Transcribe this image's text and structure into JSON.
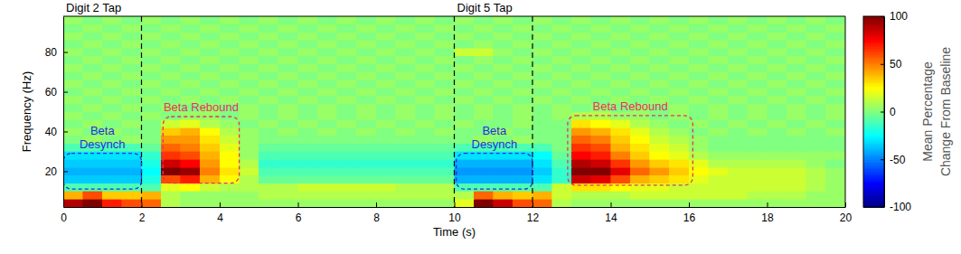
{
  "chart_data": {
    "type": "heatmap",
    "xlabel": "Time (s)",
    "ylabel": "Frequency (Hz)",
    "xlim": [
      0,
      20
    ],
    "ylim": [
      2,
      98
    ],
    "xticks": [
      0,
      2,
      4,
      6,
      8,
      10,
      12,
      14,
      16,
      18,
      20
    ],
    "yticks": [
      20,
      40,
      60,
      80
    ],
    "x": [
      0.25,
      0.75,
      1.25,
      1.75,
      2.25,
      2.75,
      3.25,
      3.75,
      4.25,
      4.75,
      5.25,
      5.75,
      6.25,
      6.75,
      7.25,
      7.75,
      8.25,
      8.75,
      9.25,
      9.75,
      10.25,
      10.75,
      11.25,
      11.75,
      12.25,
      12.75,
      13.25,
      13.75,
      14.25,
      14.75,
      15.25,
      15.75,
      16.25,
      16.75,
      17.25,
      17.75,
      18.25,
      18.75,
      19.25,
      19.75
    ],
    "y": [
      4,
      8,
      12,
      16,
      20,
      24,
      28,
      32,
      36,
      40,
      44,
      48,
      52,
      56,
      60,
      64,
      68,
      72,
      76,
      80,
      84,
      88,
      92,
      96
    ],
    "cells": [
      [
        90,
        100,
        70,
        60,
        55,
        10,
        5,
        5,
        5,
        5,
        5,
        5,
        5,
        5,
        5,
        5,
        5,
        5,
        5,
        5,
        20,
        100,
        85,
        60,
        55,
        10,
        5,
        5,
        5,
        5,
        5,
        5,
        5,
        5,
        5,
        5,
        5,
        5,
        5,
        5
      ],
      [
        40,
        60,
        35,
        35,
        40,
        10,
        5,
        5,
        5,
        5,
        10,
        10,
        10,
        10,
        10,
        10,
        10,
        10,
        10,
        10,
        10,
        55,
        40,
        35,
        40,
        15,
        10,
        10,
        10,
        15,
        15,
        15,
        15,
        15,
        15,
        10,
        10,
        10,
        5,
        5
      ],
      [
        -10,
        -10,
        -10,
        -10,
        -10,
        20,
        25,
        15,
        10,
        10,
        10,
        10,
        15,
        15,
        15,
        15,
        15,
        10,
        10,
        10,
        -10,
        -10,
        -10,
        -10,
        -10,
        15,
        30,
        30,
        25,
        20,
        20,
        15,
        15,
        15,
        15,
        15,
        15,
        15,
        10,
        5
      ],
      [
        -35,
        -35,
        -35,
        -35,
        -20,
        60,
        70,
        40,
        25,
        10,
        -5,
        -5,
        -5,
        -5,
        -5,
        -5,
        -5,
        -5,
        -5,
        -5,
        -40,
        -40,
        -40,
        -40,
        -30,
        -15,
        85,
        80,
        60,
        40,
        35,
        30,
        20,
        15,
        15,
        15,
        15,
        15,
        10,
        5
      ],
      [
        -40,
        -40,
        -40,
        -40,
        -25,
        100,
        95,
        50,
        30,
        15,
        -10,
        -10,
        -10,
        -10,
        -10,
        -10,
        -10,
        -10,
        -10,
        -10,
        -45,
        -45,
        -45,
        -45,
        -35,
        -15,
        100,
        100,
        80,
        55,
        45,
        35,
        25,
        20,
        15,
        15,
        15,
        15,
        10,
        5
      ],
      [
        -35,
        -35,
        -35,
        -35,
        -20,
        85,
        75,
        45,
        25,
        10,
        -15,
        -15,
        -15,
        -15,
        -15,
        -15,
        -15,
        -15,
        -15,
        -15,
        -40,
        -40,
        -40,
        -40,
        -30,
        -10,
        90,
        85,
        65,
        45,
        35,
        30,
        20,
        10,
        10,
        10,
        10,
        10,
        5,
        0
      ],
      [
        -30,
        -30,
        -30,
        -30,
        -15,
        65,
        60,
        40,
        25,
        5,
        -10,
        -10,
        -10,
        -10,
        -10,
        -10,
        -10,
        -10,
        -10,
        -10,
        -30,
        -30,
        -30,
        -30,
        -25,
        -5,
        75,
        70,
        50,
        35,
        25,
        20,
        10,
        5,
        5,
        5,
        5,
        5,
        5,
        5
      ],
      [
        -10,
        -10,
        -10,
        -10,
        -5,
        55,
        50,
        35,
        20,
        5,
        -5,
        -5,
        -5,
        -5,
        -5,
        -5,
        -5,
        -5,
        -5,
        -5,
        -10,
        -10,
        -10,
        -10,
        -10,
        0,
        65,
        60,
        40,
        30,
        20,
        15,
        5,
        0,
        0,
        0,
        0,
        0,
        0,
        0
      ],
      [
        0,
        5,
        0,
        5,
        0,
        45,
        45,
        30,
        15,
        5,
        0,
        0,
        0,
        0,
        0,
        0,
        0,
        0,
        0,
        0,
        0,
        5,
        0,
        5,
        0,
        0,
        55,
        50,
        35,
        25,
        15,
        10,
        5,
        0,
        0,
        0,
        0,
        0,
        0,
        0
      ],
      [
        5,
        0,
        5,
        0,
        0,
        35,
        40,
        25,
        10,
        5,
        0,
        5,
        0,
        5,
        0,
        5,
        0,
        5,
        0,
        5,
        0,
        0,
        5,
        0,
        0,
        0,
        45,
        40,
        30,
        20,
        10,
        5,
        0,
        5,
        0,
        5,
        0,
        5,
        0,
        5
      ],
      [
        0,
        5,
        0,
        5,
        0,
        15,
        20,
        10,
        5,
        0,
        5,
        0,
        5,
        0,
        5,
        0,
        5,
        0,
        5,
        0,
        5,
        0,
        0,
        5,
        0,
        0,
        30,
        25,
        20,
        10,
        5,
        0,
        5,
        0,
        5,
        0,
        5,
        0,
        5,
        0
      ],
      [
        5,
        0,
        5,
        0,
        5,
        0,
        5,
        5,
        0,
        5,
        0,
        5,
        0,
        5,
        0,
        5,
        0,
        5,
        0,
        5,
        0,
        5,
        0,
        5,
        0,
        5,
        10,
        10,
        5,
        5,
        0,
        5,
        0,
        5,
        0,
        5,
        0,
        5,
        0,
        5
      ],
      [
        0,
        5,
        0,
        5,
        0,
        5,
        0,
        5,
        0,
        5,
        0,
        5,
        0,
        5,
        0,
        5,
        0,
        5,
        0,
        5,
        0,
        5,
        0,
        5,
        0,
        5,
        0,
        5,
        0,
        5,
        0,
        5,
        0,
        5,
        0,
        5,
        0,
        5,
        0,
        5
      ],
      [
        5,
        0,
        5,
        0,
        5,
        0,
        5,
        0,
        5,
        0,
        5,
        0,
        5,
        0,
        5,
        0,
        5,
        0,
        5,
        0,
        5,
        0,
        5,
        0,
        5,
        0,
        5,
        0,
        5,
        0,
        5,
        0,
        5,
        0,
        5,
        0,
        5,
        0,
        5,
        0
      ],
      [
        0,
        5,
        0,
        5,
        0,
        5,
        0,
        5,
        0,
        5,
        0,
        5,
        0,
        5,
        0,
        5,
        0,
        5,
        0,
        5,
        0,
        5,
        0,
        5,
        0,
        5,
        0,
        5,
        0,
        5,
        0,
        5,
        0,
        5,
        0,
        5,
        0,
        5,
        0,
        5
      ],
      [
        5,
        0,
        5,
        0,
        5,
        0,
        5,
        0,
        5,
        0,
        5,
        0,
        5,
        0,
        5,
        0,
        5,
        0,
        5,
        0,
        5,
        0,
        5,
        0,
        5,
        0,
        5,
        0,
        5,
        0,
        5,
        0,
        5,
        0,
        5,
        0,
        5,
        0,
        5,
        0
      ],
      [
        0,
        5,
        0,
        5,
        0,
        5,
        0,
        5,
        0,
        5,
        0,
        5,
        0,
        5,
        0,
        5,
        0,
        5,
        0,
        5,
        0,
        5,
        0,
        5,
        0,
        5,
        0,
        5,
        0,
        5,
        0,
        5,
        0,
        5,
        0,
        5,
        0,
        5,
        0,
        5
      ],
      [
        5,
        0,
        5,
        0,
        5,
        0,
        5,
        0,
        5,
        0,
        5,
        0,
        5,
        0,
        5,
        0,
        5,
        0,
        5,
        0,
        5,
        0,
        5,
        0,
        5,
        0,
        5,
        0,
        5,
        0,
        5,
        0,
        5,
        0,
        5,
        0,
        5,
        0,
        5,
        0
      ],
      [
        0,
        5,
        0,
        5,
        0,
        5,
        0,
        5,
        0,
        5,
        0,
        5,
        0,
        5,
        0,
        5,
        0,
        5,
        0,
        5,
        0,
        5,
        0,
        5,
        0,
        5,
        0,
        5,
        0,
        5,
        0,
        5,
        0,
        5,
        0,
        5,
        0,
        5,
        0,
        5
      ],
      [
        5,
        0,
        5,
        0,
        5,
        0,
        5,
        0,
        5,
        0,
        5,
        0,
        5,
        0,
        5,
        0,
        5,
        0,
        5,
        0,
        15,
        15,
        5,
        0,
        5,
        0,
        5,
        0,
        5,
        0,
        5,
        0,
        5,
        0,
        5,
        0,
        5,
        0,
        5,
        0
      ],
      [
        0,
        5,
        0,
        5,
        0,
        5,
        0,
        5,
        0,
        5,
        0,
        5,
        0,
        5,
        0,
        5,
        0,
        5,
        0,
        5,
        0,
        5,
        0,
        5,
        0,
        5,
        0,
        5,
        0,
        5,
        0,
        5,
        0,
        5,
        0,
        5,
        0,
        5,
        0,
        5
      ],
      [
        5,
        0,
        5,
        0,
        5,
        0,
        5,
        0,
        5,
        0,
        5,
        0,
        5,
        0,
        5,
        0,
        5,
        0,
        5,
        0,
        5,
        0,
        5,
        0,
        5,
        0,
        5,
        0,
        5,
        0,
        5,
        0,
        5,
        0,
        5,
        0,
        5,
        0,
        5,
        0
      ],
      [
        0,
        5,
        0,
        5,
        0,
        5,
        0,
        5,
        0,
        5,
        0,
        5,
        0,
        5,
        0,
        5,
        0,
        5,
        0,
        5,
        0,
        5,
        0,
        5,
        0,
        5,
        0,
        5,
        0,
        5,
        0,
        5,
        0,
        5,
        0,
        5,
        0,
        5,
        0,
        5
      ],
      [
        5,
        0,
        5,
        0,
        5,
        0,
        5,
        0,
        5,
        0,
        5,
        0,
        5,
        0,
        5,
        0,
        5,
        0,
        5,
        0,
        5,
        0,
        5,
        0,
        5,
        0,
        5,
        0,
        5,
        0,
        5,
        0,
        5,
        0,
        5,
        0,
        5,
        0,
        5,
        0
      ]
    ],
    "colorbar": {
      "label": [
        "Mean Percentage",
        "Change From Baseline"
      ],
      "range": [
        -100,
        100
      ],
      "ticks": [
        -100,
        -50,
        0,
        50,
        100
      ]
    },
    "annotations": [
      {
        "text": "Digit 2 Tap",
        "x": 0
      },
      {
        "text": "Digit 5 Tap",
        "x": 10
      }
    ],
    "events": [
      2,
      10,
      12
    ],
    "regions": [
      {
        "label": [
          "Beta",
          "Desynch"
        ],
        "x": [
          0,
          2
        ],
        "y": [
          11,
          29
        ],
        "color": "#2a2ae0"
      },
      {
        "label": [
          "Beta Rebound"
        ],
        "x": [
          2.55,
          4.5
        ],
        "y": [
          14,
          47.5
        ],
        "color": "#e8306a"
      },
      {
        "label": [
          "Beta",
          "Desynch"
        ],
        "x": [
          10.05,
          12
        ],
        "y": [
          11,
          29
        ],
        "color": "#2a2ae0"
      },
      {
        "label": [
          "Beta Rebound"
        ],
        "x": [
          12.9,
          16.1
        ],
        "y": [
          13,
          48
        ],
        "color": "#e8306a"
      }
    ]
  }
}
